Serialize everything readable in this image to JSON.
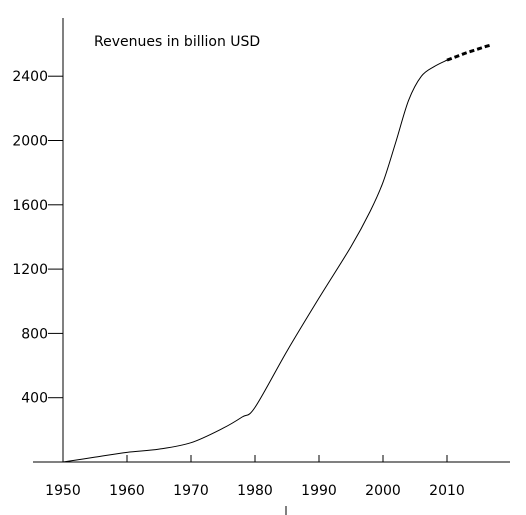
{
  "chart_data": {
    "type": "line",
    "title": "Revenues in billion USD",
    "xlabel": "",
    "ylabel": "",
    "xlim": [
      1950,
      2020
    ],
    "ylim": [
      0,
      2700
    ],
    "x_ticks": [
      1950,
      1960,
      1970,
      1980,
      1990,
      2000,
      2010
    ],
    "y_ticks": [
      400,
      800,
      1200,
      1600,
      2000,
      2400
    ],
    "x_tick_labels": [
      "1950",
      "1960",
      "1970",
      "1980",
      "1990",
      "2000",
      "2010"
    ],
    "y_tick_labels": [
      "400",
      "800",
      "1200",
      "1600",
      "2000",
      "2400"
    ],
    "grid": false,
    "series": [
      {
        "style": "solid",
        "x": [
          1950,
          1955,
          1960,
          1965,
          1970,
          1975,
          1978,
          1980,
          1985,
          1990,
          1995,
          1998,
          2000,
          2002,
          2004,
          2006,
          2008,
          2010
        ],
        "y": [
          0,
          30,
          60,
          80,
          120,
          210,
          280,
          340,
          690,
          1020,
          1340,
          1560,
          1740,
          1990,
          2250,
          2400,
          2460,
          2500
        ]
      },
      {
        "style": "dashed",
        "x": [
          2010,
          2011,
          2012,
          2013,
          2014,
          2015,
          2016,
          2017
        ],
        "y": [
          2500,
          2515,
          2530,
          2545,
          2558,
          2571,
          2584,
          2595
        ]
      }
    ]
  }
}
